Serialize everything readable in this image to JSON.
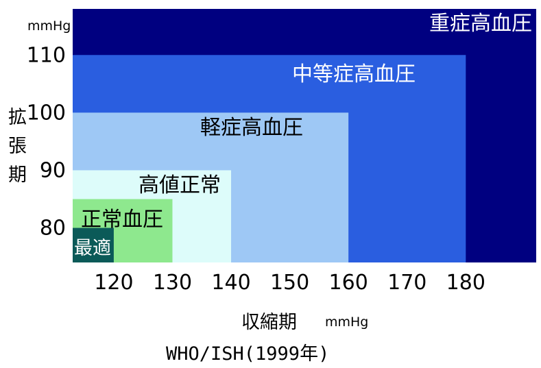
{
  "chart_data": {
    "type": "area",
    "y_unit": "mmHg",
    "x_unit": "mmHg",
    "xlabel": "収縮期",
    "ylabel": [
      "拡",
      "張",
      "期"
    ],
    "caption": "WHO/ISH(1999年)",
    "x_ticks": [
      120,
      130,
      140,
      150,
      160,
      170,
      180
    ],
    "y_ticks": [
      80,
      90,
      100,
      110
    ],
    "xlim": [
      113,
      192
    ],
    "ylim": [
      74,
      118
    ],
    "categories": [
      {
        "label": "重症高血圧",
        "sbp_max": 192,
        "dbp_max": 118,
        "color": "#000080",
        "label_color": "#ffffff"
      },
      {
        "label": "中等症高血圧",
        "sbp_max": 180,
        "dbp_max": 110,
        "color": "#2a5ee0",
        "label_color": "#ffffff"
      },
      {
        "label": "軽症高血圧",
        "sbp_max": 160,
        "dbp_max": 100,
        "color": "#9ec8f5",
        "label_color": "#000000"
      },
      {
        "label": "高値正常",
        "sbp_max": 140,
        "dbp_max": 90,
        "color": "#ddfcfa",
        "label_color": "#000000"
      },
      {
        "label": "正常血圧",
        "sbp_max": 130,
        "dbp_max": 85,
        "color": "#8ee88e",
        "label_color": "#000000"
      },
      {
        "label": "最適",
        "sbp_max": 120,
        "dbp_max": 80,
        "color": "#0b5a58",
        "label_color": "#ffffff"
      }
    ]
  }
}
